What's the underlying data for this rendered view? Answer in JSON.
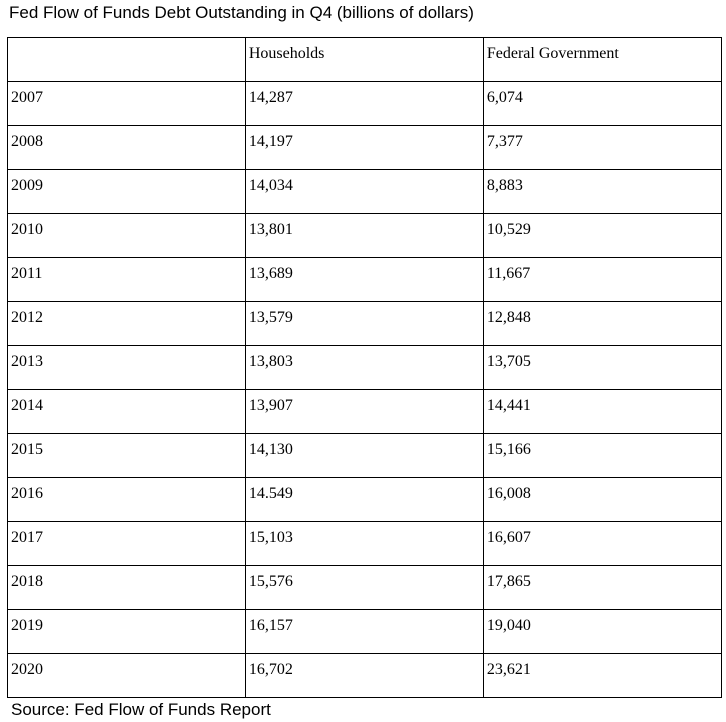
{
  "title": "Fed Flow of Funds Debt Outstanding in Q4 (billions of dollars)",
  "table": {
    "columns": [
      "Households",
      "Federal Government"
    ],
    "rows": [
      [
        "2007",
        "14,287",
        "6,074"
      ],
      [
        "2008",
        "14,197",
        "7,377"
      ],
      [
        "2009",
        "14,034",
        "8,883"
      ],
      [
        "2010",
        "13,801",
        "10,529"
      ],
      [
        "2011",
        "13,689",
        "11,667"
      ],
      [
        "2012",
        "13,579",
        "12,848"
      ],
      [
        "2013",
        "13,803",
        "13,705"
      ],
      [
        "2014",
        "13,907",
        "14,441"
      ],
      [
        "2015",
        "14,130",
        "15,166"
      ],
      [
        "2016",
        "14.549",
        "16,008"
      ],
      [
        "2017",
        "15,103",
        "16,607"
      ],
      [
        "2018",
        "15,576",
        "17,865"
      ],
      [
        "2019",
        "16,157",
        "19,040"
      ],
      [
        "2020",
        "16,702",
        "23,621"
      ]
    ]
  },
  "source": "Source: Fed Flow of Funds Report"
}
